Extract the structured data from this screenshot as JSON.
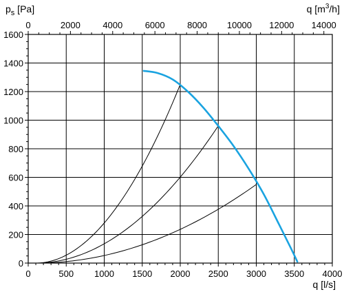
{
  "chart_data": {
    "type": "line",
    "y_axis": {
      "label_main": "p",
      "label_sub": "s",
      "label_unit": " [Pa]",
      "range": [
        0,
        1600
      ],
      "ticks": [
        0,
        200,
        400,
        600,
        800,
        1000,
        1200,
        1400,
        1600
      ]
    },
    "x_axis_bottom": {
      "label": "q [l/s]",
      "range": [
        0,
        4000
      ],
      "ticks": [
        0,
        500,
        1000,
        1500,
        2000,
        2500,
        3000,
        3500,
        4000
      ]
    },
    "x_axis_top": {
      "label_main": "q [m",
      "label_sup": "3",
      "label_end": "/h]",
      "range": [
        0,
        14400
      ],
      "ticks": [
        0,
        2000,
        4000,
        6000,
        8000,
        10000,
        12000,
        14000
      ]
    },
    "grid": true,
    "fan_curve": {
      "color": "#1aa3e0",
      "x": [
        1520,
        1700,
        1900,
        2100,
        2300,
        2500,
        2700,
        2900,
        3100,
        3300,
        3450,
        3540
      ],
      "y": [
        1345,
        1330,
        1285,
        1200,
        1090,
        960,
        820,
        660,
        480,
        270,
        110,
        10
      ]
    },
    "system_curves": [
      {
        "x": [
          100,
          2000
        ],
        "y": [
          0,
          1250
        ],
        "through": [
          2000,
          1250
        ]
      },
      {
        "x": [
          100,
          2500
        ],
        "y": [
          0,
          960
        ],
        "through": [
          2500,
          960
        ]
      },
      {
        "x": [
          100,
          3000
        ],
        "y": [
          0,
          550
        ],
        "through": [
          3000,
          550
        ]
      }
    ]
  }
}
